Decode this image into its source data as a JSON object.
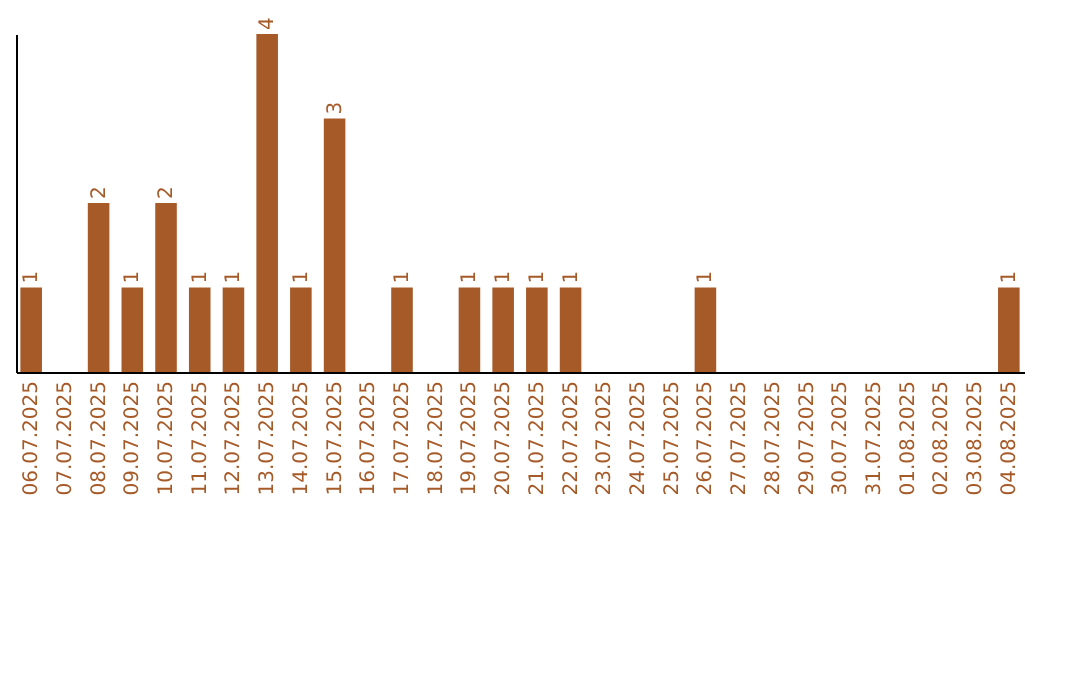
{
  "chart_data": {
    "type": "bar",
    "categories": [
      "06.07.2025",
      "07.07.2025",
      "08.07.2025",
      "09.07.2025",
      "10.07.2025",
      "11.07.2025",
      "12.07.2025",
      "13.07.2025",
      "14.07.2025",
      "15.07.2025",
      "16.07.2025",
      "17.07.2025",
      "18.07.2025",
      "19.07.2025",
      "20.07.2025",
      "21.07.2025",
      "22.07.2025",
      "23.07.2025",
      "24.07.2025",
      "25.07.2025",
      "26.07.2025",
      "27.07.2025",
      "28.07.2025",
      "29.07.2025",
      "30.07.2025",
      "31.07.2025",
      "01.08.2025",
      "02.08.2025",
      "03.08.2025",
      "04.08.2025"
    ],
    "values": [
      1,
      0,
      2,
      1,
      2,
      1,
      1,
      4,
      1,
      3,
      0,
      1,
      0,
      1,
      1,
      1,
      1,
      0,
      0,
      0,
      1,
      0,
      0,
      0,
      0,
      0,
      0,
      0,
      0,
      1
    ],
    "value_labels": [
      "1",
      null,
      "2",
      "1",
      "2",
      "1",
      "1",
      "4",
      "1",
      "3",
      null,
      "1",
      null,
      "1",
      "1",
      "1",
      "1",
      null,
      null,
      null,
      "1",
      null,
      null,
      null,
      null,
      null,
      null,
      null,
      null,
      "1"
    ],
    "color": "#a65a28",
    "ylim": [
      0,
      4
    ],
    "tick_labels": "x",
    "grid": false
  }
}
